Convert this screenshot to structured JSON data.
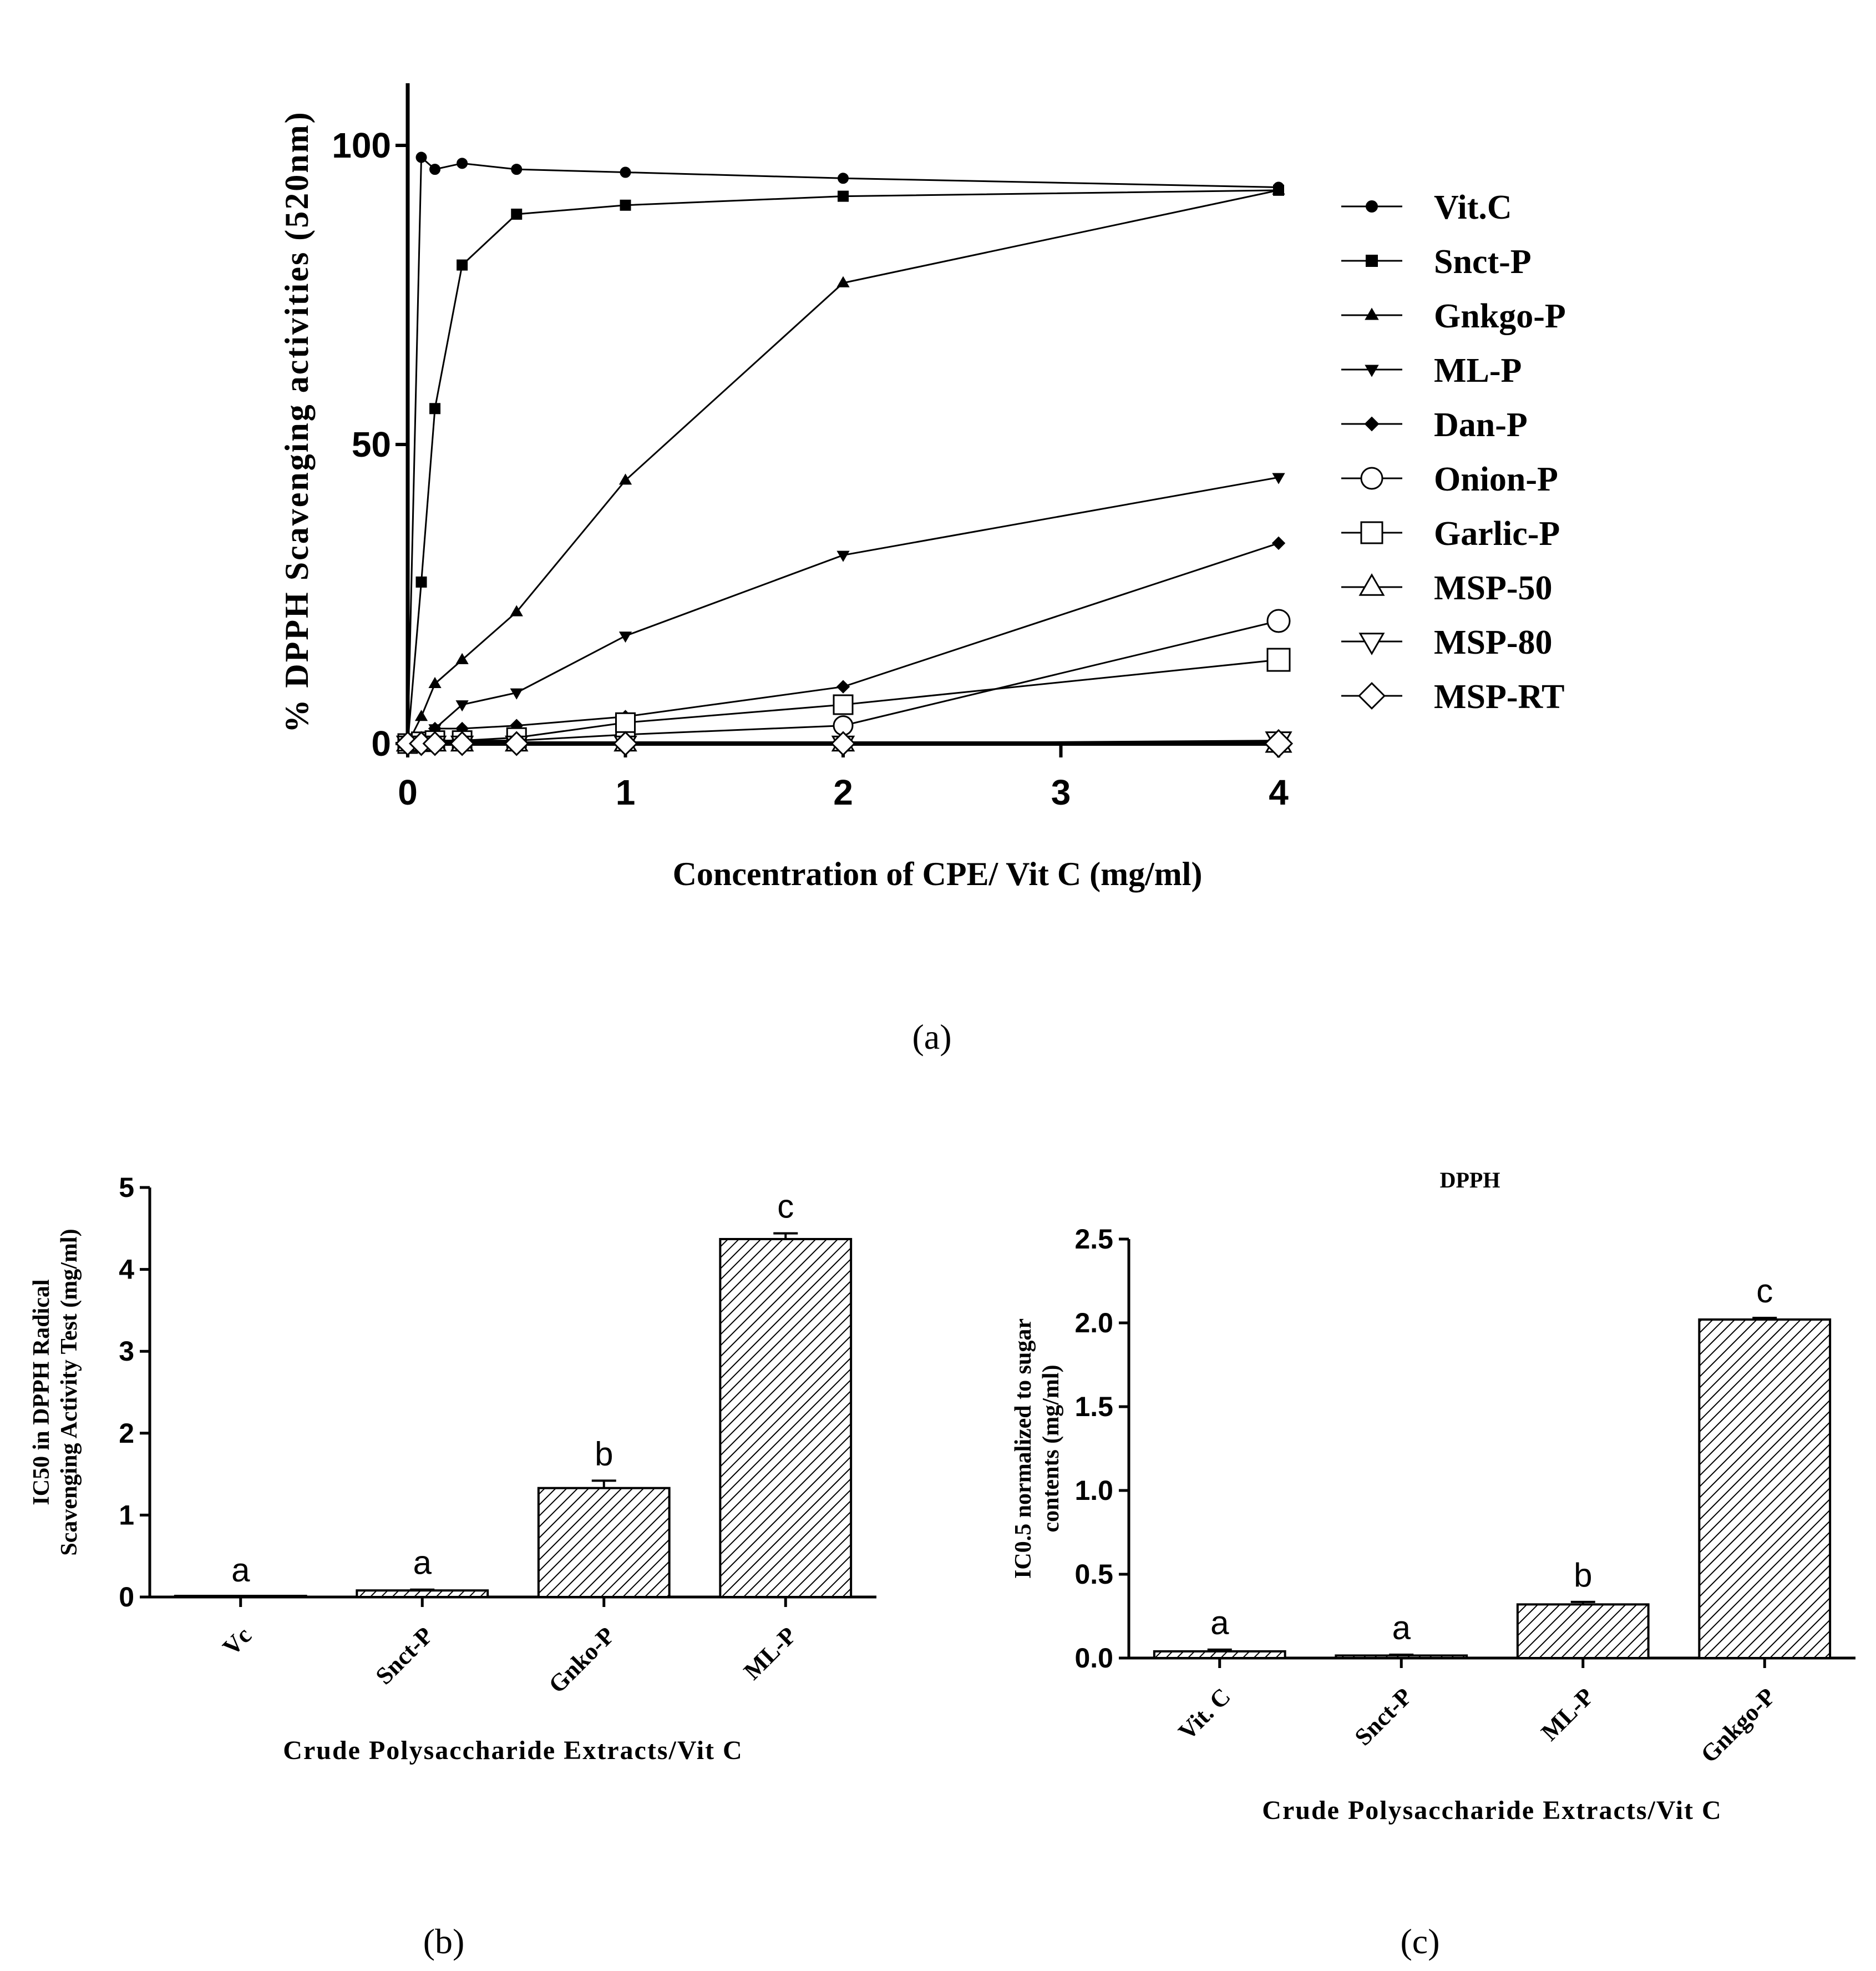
{
  "panel_labels": {
    "a": "(a)",
    "b": "(b)",
    "c": "(c)"
  },
  "colors": {
    "ink": "#000000",
    "background": "#ffffff"
  },
  "chart_data": [
    {
      "id": "a",
      "type": "line",
      "title": "",
      "xlabel": "Concentration of CPE/ Vit C (mg/ml)",
      "ylabel": "% DPPH Scavenging activities (520nm)",
      "xticks": [
        0,
        1,
        2,
        3,
        4
      ],
      "yticks": [
        0,
        50,
        100
      ],
      "xlim": [
        0,
        4
      ],
      "ylim": [
        0,
        110
      ],
      "legend_position": "right",
      "series": [
        {
          "name": "Vit.C",
          "marker": "circle-filled",
          "x": [
            0.0625,
            0.125,
            0.25,
            0.5,
            1,
            2,
            4
          ],
          "y": [
            98,
            96,
            97,
            96,
            95.5,
            94.5,
            93
          ]
        },
        {
          "name": "Snct-P",
          "marker": "square-filled",
          "x": [
            0.0625,
            0.125,
            0.25,
            0.5,
            1,
            2,
            4
          ],
          "y": [
            27,
            56,
            80,
            88.5,
            90,
            91.5,
            92.5
          ]
        },
        {
          "name": "Gnkgo-P",
          "marker": "triangle-up-filled",
          "x": [
            0.0625,
            0.125,
            0.25,
            0.5,
            1,
            2,
            4
          ],
          "y": [
            4.5,
            10,
            14,
            22,
            44,
            77,
            92.5
          ]
        },
        {
          "name": "ML-P",
          "marker": "triangle-down-filled",
          "x": [
            0.0625,
            0.125,
            0.25,
            0.5,
            1,
            2,
            4
          ],
          "y": [
            1,
            2.5,
            6.5,
            8.5,
            18,
            31.5,
            44.5
          ]
        },
        {
          "name": "Dan-P",
          "marker": "diamond-filled",
          "x": [
            0.0625,
            0.125,
            0.25,
            0.5,
            1,
            2,
            4
          ],
          "y": [
            0.5,
            2.5,
            2.5,
            3,
            4.5,
            9.5,
            33.5
          ]
        },
        {
          "name": "Onion-P",
          "marker": "circle-open",
          "x": [
            0.0625,
            0.125,
            0.25,
            0.5,
            1,
            2,
            4
          ],
          "y": [
            0.3,
            0.5,
            0.5,
            0.5,
            1.5,
            3,
            20.5
          ]
        },
        {
          "name": "Garlic-P",
          "marker": "square-open",
          "x": [
            0.0625,
            0.125,
            0.25,
            0.5,
            1,
            2,
            4
          ],
          "y": [
            0.3,
            0.5,
            0.5,
            1,
            3.5,
            6.5,
            14
          ]
        },
        {
          "name": "MSP-50",
          "marker": "triangle-up-open",
          "x": [
            0.0625,
            0.125,
            0.25,
            0.5,
            1,
            2,
            4
          ],
          "y": [
            0,
            0,
            0,
            0,
            0,
            0,
            0
          ]
        },
        {
          "name": "MSP-80",
          "marker": "triangle-down-open",
          "x": [
            0.0625,
            0.125,
            0.25,
            0.5,
            1,
            2,
            4
          ],
          "y": [
            0,
            0,
            0,
            0,
            0,
            0,
            0.5
          ]
        },
        {
          "name": "MSP-RT",
          "marker": "diamond-open",
          "x": [
            0.0625,
            0.125,
            0.25,
            0.5,
            1,
            2,
            4
          ],
          "y": [
            0,
            0,
            0,
            0,
            0,
            0,
            0
          ]
        }
      ]
    },
    {
      "id": "b",
      "type": "bar",
      "title": "",
      "xlabel": "Crude Polysaccharide Extracts/Vit C",
      "ylabel": [
        "IC50 in DPPH Radical",
        "Scavenging Activity Test (mg/ml)"
      ],
      "categories": [
        "Vc",
        "Snct-P",
        "Gnko-P",
        "ML-P"
      ],
      "values": [
        0,
        0.08,
        1.33,
        4.37
      ],
      "errors": [
        0,
        0.01,
        0.09,
        0.07
      ],
      "letters": [
        "a",
        "a",
        "b",
        "c"
      ],
      "yticks": [
        0,
        1,
        2,
        3,
        4,
        5
      ],
      "ylim": [
        0,
        5
      ]
    },
    {
      "id": "c",
      "type": "bar",
      "title": "DPPH",
      "xlabel": "Crude Polysaccharide Extracts/Vit C",
      "ylabel": [
        "IC0.5 normalized to sugar",
        "contents (mg/ml)"
      ],
      "categories": [
        "Vit. C",
        "Snct-P",
        "ML-P",
        "Gnkgo-P"
      ],
      "values": [
        0.04,
        0.015,
        0.32,
        2.02
      ],
      "errors": [
        0.01,
        0.005,
        0.015,
        0.01
      ],
      "letters": [
        "a",
        "a",
        "b",
        "c"
      ],
      "yticks": [
        "0.0",
        "0.5",
        "1.0",
        "1.5",
        "2.0",
        "2.5"
      ],
      "ylim": [
        0,
        2.5
      ]
    }
  ]
}
